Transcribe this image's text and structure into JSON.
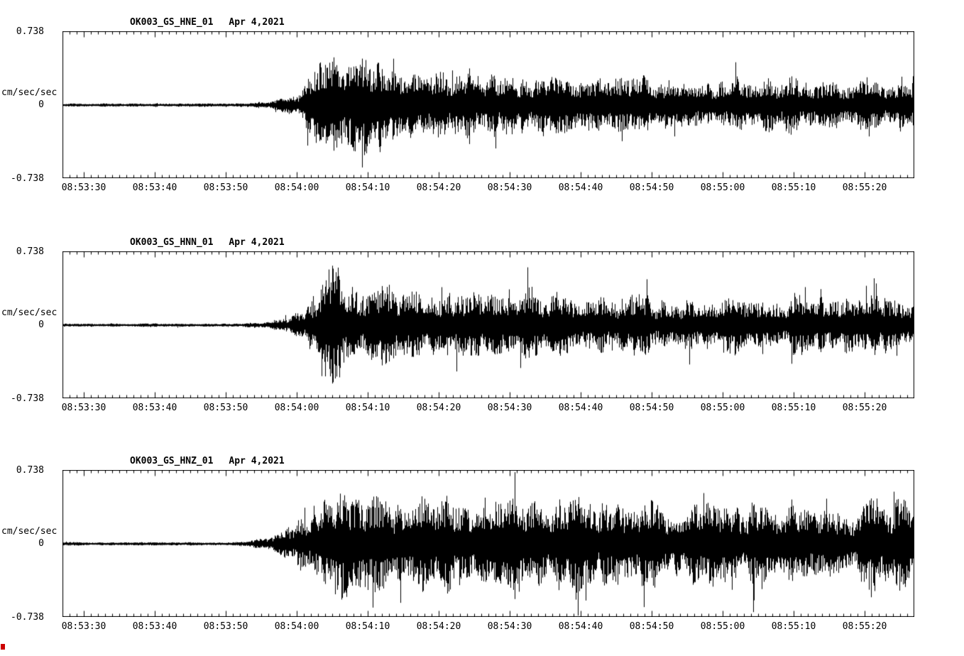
{
  "figure": {
    "background": "#ffffff",
    "trace_color": "#000000",
    "axis_color": "#000000",
    "corner_marker_color": "#cc0000"
  },
  "chart_data": [
    {
      "type": "line",
      "subtype": "seismogram",
      "title": "OK003_GS_HNE_01  Apr 4,2021",
      "station": "OK003_GS_HNE_01",
      "date": "Apr 4,2021",
      "ylabel": "cm/sec/sec",
      "ylim": [
        -0.738,
        0.738
      ],
      "fullscale": 0.738,
      "yticks": [
        "0.738",
        "0",
        "-0.738"
      ],
      "x_start_time": "08:53:27",
      "x_span_seconds": 120,
      "tick_interval_seconds": 10,
      "minor_tick_seconds": 1,
      "xtick_labels": [
        "08:53:30",
        "08:53:40",
        "08:53:50",
        "08:54:00",
        "08:54:10",
        "08:54:20",
        "08:54:30",
        "08:54:40",
        "08:54:50",
        "08:55:00",
        "08:55:10",
        "08:55:20"
      ],
      "xtick_offsets_seconds": [
        3,
        13,
        23,
        33,
        43,
        53,
        63,
        73,
        83,
        93,
        103,
        113
      ],
      "envelope_units": "fraction_of_fullscale_vs_seconds",
      "envelope": [
        [
          0,
          0.014
        ],
        [
          23,
          0.014
        ],
        [
          26,
          0.02
        ],
        [
          29,
          0.04
        ],
        [
          31,
          0.07
        ],
        [
          33,
          0.12
        ],
        [
          34,
          0.2
        ],
        [
          35,
          0.3
        ],
        [
          36,
          0.44
        ],
        [
          37,
          0.52
        ],
        [
          38,
          0.6
        ],
        [
          39,
          0.62
        ],
        [
          40,
          0.55
        ],
        [
          42,
          0.5
        ],
        [
          44,
          0.46
        ],
        [
          46,
          0.42
        ],
        [
          49,
          0.38
        ],
        [
          52,
          0.34
        ],
        [
          55,
          0.36
        ],
        [
          57,
          0.4
        ],
        [
          59,
          0.36
        ],
        [
          62,
          0.32
        ],
        [
          66,
          0.3
        ],
        [
          70,
          0.32
        ],
        [
          74,
          0.3
        ],
        [
          78,
          0.28
        ],
        [
          82,
          0.3
        ],
        [
          86,
          0.28
        ],
        [
          90,
          0.3
        ],
        [
          94,
          0.27
        ],
        [
          98,
          0.29
        ],
        [
          102,
          0.27
        ],
        [
          106,
          0.29
        ],
        [
          110,
          0.27
        ],
        [
          114,
          0.3
        ],
        [
          120,
          0.3
        ]
      ]
    },
    {
      "type": "line",
      "subtype": "seismogram",
      "title": "OK003_GS_HNN_01  Apr 4,2021",
      "station": "OK003_GS_HNN_01",
      "date": "Apr 4,2021",
      "ylabel": "cm/sec/sec",
      "ylim": [
        -0.738,
        0.738
      ],
      "fullscale": 0.738,
      "yticks": [
        "0.738",
        "0",
        "-0.738"
      ],
      "x_start_time": "08:53:27",
      "x_span_seconds": 120,
      "tick_interval_seconds": 10,
      "minor_tick_seconds": 1,
      "xtick_labels": [
        "08:53:30",
        "08:53:40",
        "08:53:50",
        "08:54:00",
        "08:54:10",
        "08:54:20",
        "08:54:30",
        "08:54:40",
        "08:54:50",
        "08:55:00",
        "08:55:10",
        "08:55:20"
      ],
      "xtick_offsets_seconds": [
        3,
        13,
        23,
        33,
        43,
        53,
        63,
        73,
        83,
        93,
        103,
        113
      ],
      "envelope_units": "fraction_of_fullscale_vs_seconds",
      "envelope": [
        [
          0,
          0.014
        ],
        [
          23,
          0.014
        ],
        [
          26,
          0.02
        ],
        [
          29,
          0.04
        ],
        [
          31,
          0.08
        ],
        [
          33,
          0.13
        ],
        [
          35,
          0.26
        ],
        [
          36,
          0.4
        ],
        [
          37,
          0.55
        ],
        [
          38,
          0.68
        ],
        [
          39,
          0.58
        ],
        [
          40,
          0.5
        ],
        [
          42,
          0.46
        ],
        [
          44,
          0.5
        ],
        [
          46,
          0.44
        ],
        [
          48,
          0.38
        ],
        [
          51,
          0.34
        ],
        [
          54,
          0.32
        ],
        [
          57,
          0.36
        ],
        [
          60,
          0.38
        ],
        [
          63,
          0.34
        ],
        [
          66,
          0.37
        ],
        [
          69,
          0.34
        ],
        [
          72,
          0.31
        ],
        [
          76,
          0.33
        ],
        [
          80,
          0.3
        ],
        [
          84,
          0.28
        ],
        [
          88,
          0.3
        ],
        [
          92,
          0.28
        ],
        [
          96,
          0.3
        ],
        [
          100,
          0.28
        ],
        [
          103,
          0.33
        ],
        [
          106,
          0.3
        ],
        [
          110,
          0.28
        ],
        [
          114,
          0.3
        ],
        [
          120,
          0.28
        ]
      ]
    },
    {
      "type": "line",
      "subtype": "seismogram",
      "title": "OK003_GS_HNZ_01  Apr 4,2021",
      "station": "OK003_GS_HNZ_01",
      "date": "Apr 4,2021",
      "ylabel": "cm/sec/sec",
      "ylim": [
        -0.738,
        0.738
      ],
      "fullscale": 0.738,
      "yticks": [
        "0.738",
        "0",
        "-0.738"
      ],
      "x_start_time": "08:53:27",
      "x_span_seconds": 120,
      "tick_interval_seconds": 10,
      "minor_tick_seconds": 1,
      "xtick_labels": [
        "08:53:30",
        "08:53:40",
        "08:53:50",
        "08:54:00",
        "08:54:10",
        "08:54:20",
        "08:54:30",
        "08:54:40",
        "08:54:50",
        "08:55:00",
        "08:55:10",
        "08:55:20"
      ],
      "xtick_offsets_seconds": [
        3,
        13,
        23,
        33,
        43,
        53,
        63,
        73,
        83,
        93,
        103,
        113
      ],
      "envelope_units": "fraction_of_fullscale_vs_seconds",
      "envelope": [
        [
          0,
          0.014
        ],
        [
          23,
          0.014
        ],
        [
          26,
          0.03
        ],
        [
          28,
          0.06
        ],
        [
          30,
          0.12
        ],
        [
          32,
          0.2
        ],
        [
          34,
          0.32
        ],
        [
          36,
          0.42
        ],
        [
          38,
          0.5
        ],
        [
          40,
          0.55
        ],
        [
          42,
          0.5
        ],
        [
          44,
          0.52
        ],
        [
          46,
          0.55
        ],
        [
          48,
          0.5
        ],
        [
          51,
          0.46
        ],
        [
          54,
          0.5
        ],
        [
          57,
          0.46
        ],
        [
          60,
          0.5
        ],
        [
          63,
          0.46
        ],
        [
          66,
          0.49
        ],
        [
          69,
          0.45
        ],
        [
          72,
          0.48
        ],
        [
          75,
          0.44
        ],
        [
          78,
          0.46
        ],
        [
          81,
          0.43
        ],
        [
          84,
          0.46
        ],
        [
          87,
          0.43
        ],
        [
          90,
          0.45
        ],
        [
          93,
          0.42
        ],
        [
          96,
          0.44
        ],
        [
          99,
          0.42
        ],
        [
          102,
          0.44
        ],
        [
          105,
          0.42
        ],
        [
          108,
          0.44
        ],
        [
          111,
          0.43
        ],
        [
          114,
          0.45
        ],
        [
          117,
          0.43
        ],
        [
          120,
          0.44
        ]
      ]
    }
  ]
}
